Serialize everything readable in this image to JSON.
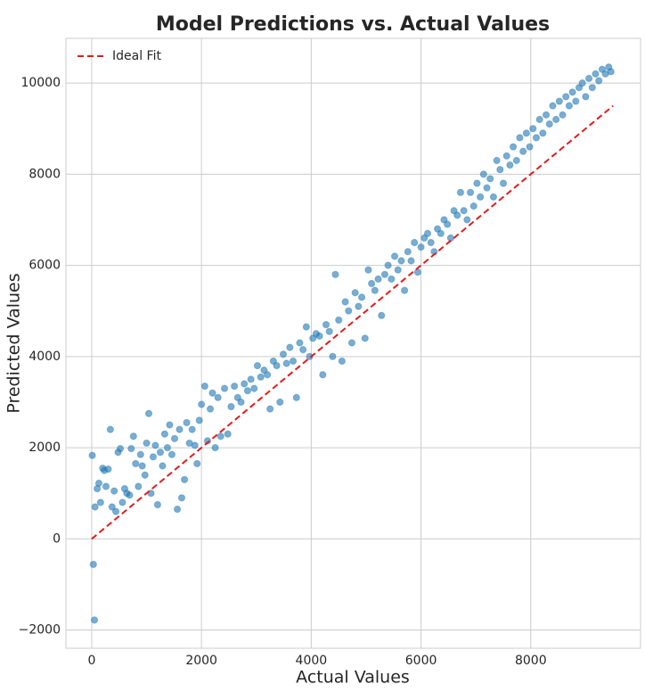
{
  "chart_data": {
    "type": "scatter",
    "title": "Model Predictions vs. Actual Values",
    "x_label": "Actual Values",
    "y_label": "Predicted Values",
    "xlim": [
      -470,
      10000
    ],
    "ylim": [
      -2400,
      10980
    ],
    "xticks": [
      0,
      2000,
      4000,
      6000,
      8000
    ],
    "yticks": [
      {
        "value": -2000,
        "label": "−2000"
      },
      0,
      2000,
      4000,
      6000,
      8000,
      10000
    ],
    "grid": true,
    "legend": "upper left",
    "series": [
      {
        "color": "#1f77b4",
        "x": [
          10,
          30,
          50,
          60,
          100,
          130,
          160,
          200,
          230,
          260,
          300,
          340,
          370,
          410,
          440,
          480,
          520,
          560,
          600,
          640,
          690,
          720,
          760,
          800,
          850,
          890,
          920,
          970,
          1000,
          1040,
          1080,
          1120,
          1160,
          1200,
          1250,
          1290,
          1330,
          1380,
          1420,
          1460,
          1510,
          1560,
          1600,
          1640,
          1690,
          1730,
          1780,
          1830,
          1880,
          1920,
          1960,
          2000,
          2060,
          2110,
          2160,
          2200,
          2250,
          2300,
          2350,
          2420,
          2480,
          2540,
          2600,
          2660,
          2720,
          2780,
          2840,
          2900,
          2960,
          3020,
          3080,
          3140,
          3200,
          3250,
          3310,
          3370,
          3430,
          3490,
          3550,
          3610,
          3670,
          3730,
          3790,
          3850,
          3910,
          3970,
          4030,
          4090,
          4150,
          4210,
          4270,
          4330,
          4390,
          4440,
          4500,
          4560,
          4620,
          4680,
          4740,
          4800,
          4860,
          4920,
          4980,
          5040,
          5100,
          5160,
          5220,
          5280,
          5340,
          5400,
          5460,
          5520,
          5580,
          5640,
          5700,
          5760,
          5820,
          5880,
          5940,
          6000,
          6060,
          6120,
          6180,
          6240,
          6300,
          6360,
          6420,
          6480,
          6540,
          6600,
          6660,
          6720,
          6780,
          6840,
          6900,
          6960,
          7020,
          7080,
          7140,
          7200,
          7260,
          7320,
          7380,
          7440,
          7500,
          7560,
          7620,
          7680,
          7740,
          7800,
          7860,
          7920,
          7980,
          8040,
          8100,
          8160,
          8220,
          8280,
          8340,
          8400,
          8460,
          8520,
          8580,
          8640,
          8700,
          8760,
          8820,
          8880,
          8940,
          9000,
          9060,
          9120,
          9180,
          9240,
          9300,
          9360,
          9420,
          9460
        ],
        "y": [
          1830,
          -560,
          -1780,
          700,
          1100,
          1220,
          800,
          1550,
          1500,
          1150,
          1530,
          2400,
          700,
          1050,
          600,
          1900,
          1980,
          800,
          1100,
          1000,
          960,
          1980,
          2250,
          1650,
          1150,
          1850,
          1600,
          1400,
          2100,
          2750,
          1000,
          1800,
          2050,
          750,
          1900,
          1600,
          2300,
          2000,
          2500,
          1850,
          2200,
          650,
          2400,
          900,
          1300,
          2550,
          2100,
          2400,
          2050,
          1650,
          2600,
          2950,
          3350,
          2150,
          2850,
          3200,
          2000,
          3100,
          2250,
          3300,
          2300,
          2900,
          3350,
          3100,
          3000,
          3400,
          3250,
          3500,
          3300,
          3800,
          3550,
          3700,
          3600,
          2850,
          3900,
          3800,
          3000,
          4050,
          3850,
          4200,
          3900,
          3100,
          4300,
          4150,
          4650,
          4000,
          4400,
          4500,
          4450,
          3600,
          4700,
          4550,
          4000,
          5800,
          4800,
          3900,
          5200,
          5000,
          4300,
          5400,
          5100,
          5300,
          4400,
          5900,
          5600,
          5450,
          5700,
          4900,
          5800,
          6000,
          5700,
          6200,
          5900,
          6100,
          5450,
          6300,
          6100,
          6500,
          5850,
          6400,
          6600,
          6700,
          6500,
          6300,
          6800,
          6700,
          7000,
          6900,
          6600,
          7200,
          7100,
          7600,
          7200,
          7000,
          7600,
          7300,
          7800,
          7500,
          8000,
          7700,
          7900,
          7500,
          8300,
          8100,
          7800,
          8400,
          8200,
          8600,
          8300,
          8800,
          8500,
          8900,
          8600,
          9000,
          8800,
          9200,
          8900,
          9300,
          9100,
          9500,
          9200,
          9600,
          9300,
          9700,
          9500,
          9800,
          9600,
          9900,
          10000,
          9700,
          10100,
          9900,
          10200,
          10050,
          10300,
          10200,
          10350,
          10250
        ]
      }
    ],
    "lines": [
      {
        "name": "Ideal Fit",
        "color": "#e41a1c",
        "x": [
          0,
          9500
        ],
        "y": [
          0,
          9500
        ]
      }
    ]
  }
}
